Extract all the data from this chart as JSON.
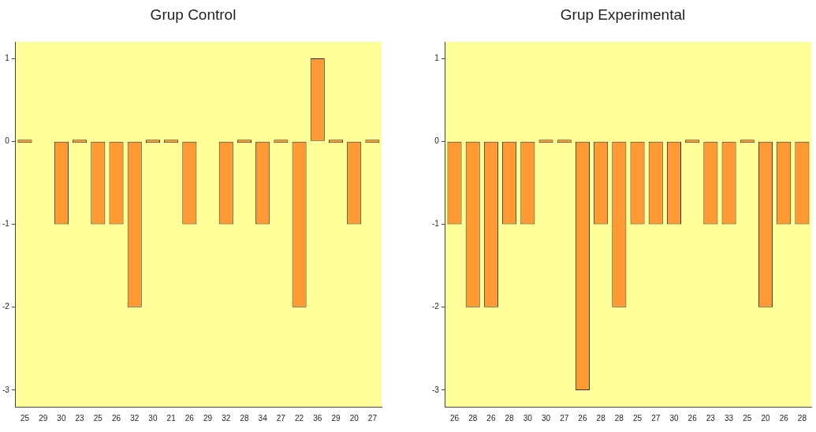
{
  "chart_data": [
    {
      "type": "bar",
      "title": "Grup Control",
      "categories": [
        "25",
        "29",
        "30",
        "23",
        "25",
        "26",
        "32",
        "30",
        "21",
        "26",
        "29",
        "32",
        "28",
        "34",
        "27",
        "22",
        "36",
        "29",
        "20",
        "27"
      ],
      "values": [
        0,
        null,
        -1,
        0,
        -1,
        -1,
        -2,
        0,
        0,
        -1,
        null,
        -1,
        0,
        -1,
        0,
        -2,
        1,
        0,
        -1,
        0
      ],
      "color": "#ff9933",
      "ylim": [
        -3.2,
        1.2
      ],
      "yticks": [
        -3,
        -2,
        -1,
        0,
        1
      ]
    },
    {
      "type": "bar",
      "title": "Grup Experimental",
      "categories": [
        "26",
        "28",
        "26",
        "28",
        "30",
        "30",
        "27",
        "26",
        "28",
        "28",
        "25",
        "27",
        "30",
        "26",
        "23",
        "33",
        "25",
        "20",
        "26",
        "28"
      ],
      "values": [
        -1,
        -2,
        -2,
        -1,
        -1,
        0,
        0,
        -3,
        -1,
        -2,
        -1,
        -1,
        -1,
        0,
        -1,
        -1,
        0,
        -2,
        -1,
        -1
      ],
      "color": "#ff9933",
      "ylim": [
        -3.2,
        1.2
      ],
      "yticks": [
        -3,
        -2,
        -1,
        0,
        1
      ]
    }
  ]
}
